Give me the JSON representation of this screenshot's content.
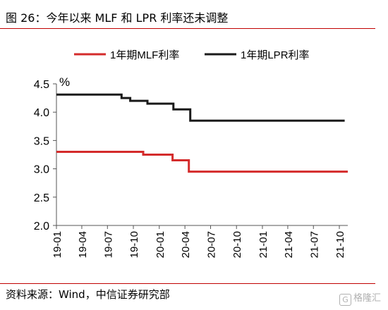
{
  "header": {
    "title": "图 26：今年以来 MLF 和 LPR 利率还未调整"
  },
  "footer": {
    "source": "资料来源：Wind，中信证券研究部",
    "watermark_text": "格隆汇",
    "watermark_logo": "G"
  },
  "colors": {
    "rule": "#c00000",
    "mlf": "#d42b2b",
    "lpr": "#1a1a1a",
    "axis": "#555555"
  },
  "chart_data": {
    "type": "line",
    "title": "",
    "ylabel": "%",
    "xlabel": "",
    "ylim": [
      2.0,
      4.5
    ],
    "yticks": [
      "2.0",
      "2.5",
      "3.0",
      "3.5",
      "4.0",
      "4.5"
    ],
    "grid": false,
    "legend_position": "top",
    "xticks": [
      "19-01",
      "19-04",
      "19-07",
      "19-10",
      "20-01",
      "20-04",
      "20-07",
      "20-10",
      "21-01",
      "21-04",
      "21-07",
      "21-10"
    ],
    "series": [
      {
        "name": "1年期MLF利率",
        "color": "#d42b2b",
        "points": [
          [
            "2019-01-01",
            3.3
          ],
          [
            "2019-11-05",
            3.3
          ],
          [
            "2019-11-05",
            3.25
          ],
          [
            "2020-02-17",
            3.25
          ],
          [
            "2020-02-17",
            3.15
          ],
          [
            "2020-04-15",
            3.15
          ],
          [
            "2020-04-15",
            2.95
          ],
          [
            "2021-10-31",
            2.95
          ]
        ]
      },
      {
        "name": "1年期LPR利率",
        "color": "#1a1a1a",
        "points": [
          [
            "2019-01-01",
            4.31
          ],
          [
            "2019-08-20",
            4.31
          ],
          [
            "2019-08-20",
            4.25
          ],
          [
            "2019-09-20",
            4.25
          ],
          [
            "2019-09-20",
            4.2
          ],
          [
            "2019-11-20",
            4.2
          ],
          [
            "2019-11-20",
            4.15
          ],
          [
            "2020-02-20",
            4.15
          ],
          [
            "2020-02-20",
            4.05
          ],
          [
            "2020-04-20",
            4.05
          ],
          [
            "2020-04-20",
            3.85
          ],
          [
            "2021-10-20",
            3.85
          ]
        ]
      }
    ]
  }
}
